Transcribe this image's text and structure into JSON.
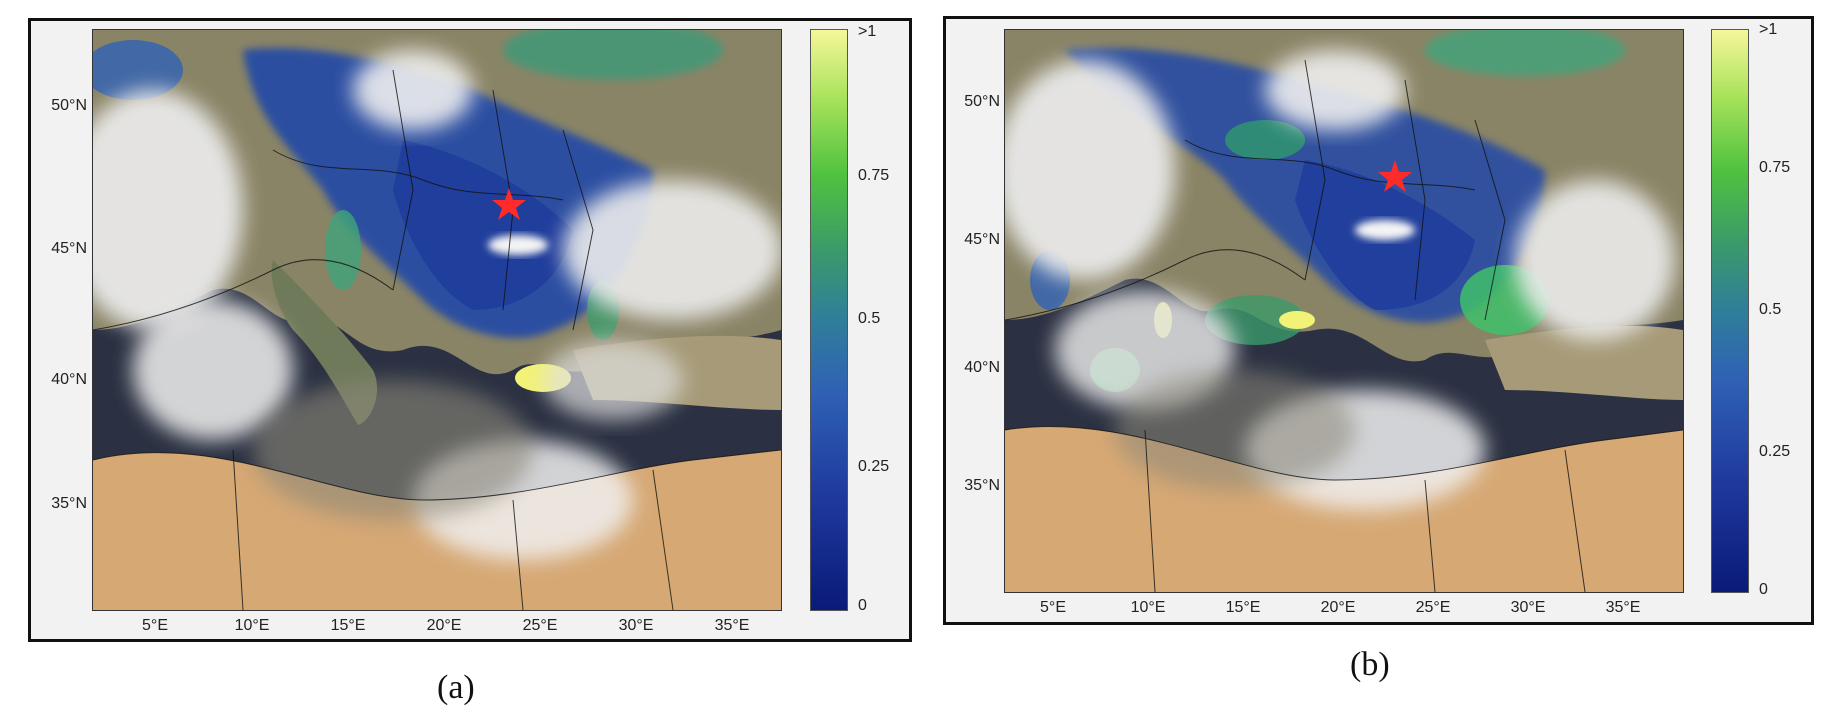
{
  "panels": [
    {
      "caption": "(a)",
      "lat_labels": [
        "50°N",
        "45°N",
        "40°N",
        "35°N"
      ],
      "lon_labels": [
        "5°E",
        "10°E",
        "15°E",
        "20°E",
        "25°E",
        "30°E",
        "35°E"
      ],
      "colorbar_ticks": [
        ">1",
        "0.75",
        "0.5",
        "0.25",
        "0"
      ],
      "marker": "red-star"
    },
    {
      "caption": "(b)",
      "lat_labels": [
        "50°N",
        "45°N",
        "40°N",
        "35°N"
      ],
      "lon_labels": [
        "5°E",
        "10°E",
        "15°E",
        "20°E",
        "25°E",
        "30°E",
        "35°E"
      ],
      "colorbar_ticks": [
        ">1",
        "0.75",
        "0.5",
        "0.25",
        "0"
      ],
      "marker": "red-star"
    }
  ],
  "colors": {
    "colorbar_low": "#0a1a78",
    "colorbar_mid": "#2f7e9a",
    "colorbar_green": "#4fc23f",
    "colorbar_high": "#f6f79a",
    "sea": "#2a3040",
    "land": "#9a8a6a",
    "desert": "#d9b07a",
    "cloud": "#eeeeee",
    "marker": "#ff2a2a"
  }
}
